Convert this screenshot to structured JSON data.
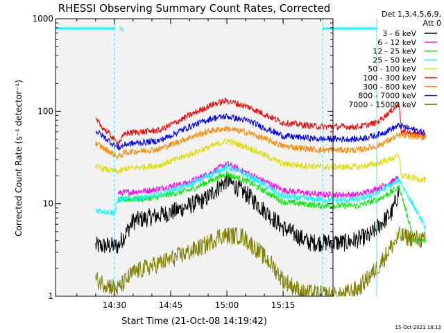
{
  "chart_data": {
    "type": "line",
    "title": "RHESSI Observing Summary Count Rates, Corrected",
    "xlabel": "Start Time (21-Oct-08 14:19:42)",
    "ylabel": "Corrected Count Rate (s⁻¹ detector⁻¹)",
    "y_scale": "log",
    "ylim": [
      1,
      1000
    ],
    "xlim_minutes": [
      14.3,
      88.3
    ],
    "y_ticks": [
      {
        "v": 1,
        "label": "1"
      },
      {
        "v": 10,
        "label": "10"
      },
      {
        "v": 100,
        "label": "100"
      },
      {
        "v": 1000,
        "label": "1000"
      }
    ],
    "x_ticks": [
      {
        "m": 30,
        "label": "14:30"
      },
      {
        "m": 45,
        "label": "14:45"
      },
      {
        "m": 60,
        "label": "15:00"
      },
      {
        "m": 75,
        "label": "15:15"
      },
      {
        "m": 90,
        "label": "15:30"
      },
      {
        "m": 105,
        "label": "15:45"
      }
    ],
    "legend": {
      "header": [
        "Det 1,3,4,5,6,9,",
        "Att 0"
      ],
      "placement": "right"
    },
    "series": [
      {
        "name": "3 - 6 keV",
        "color": "#000000",
        "points": [
          [
            25,
            3.5
          ],
          [
            31,
            3.5
          ],
          [
            35,
            6.5
          ],
          [
            45,
            8
          ],
          [
            54,
            11
          ],
          [
            60,
            18
          ],
          [
            66,
            12
          ],
          [
            75,
            5.5
          ],
          [
            82,
            3.8
          ],
          [
            92,
            3.8
          ],
          [
            98,
            4.5
          ],
          [
            104,
            8
          ],
          [
            106,
            14
          ]
        ]
      },
      {
        "name": "6 - 12 keV",
        "color": "#ff00ff",
        "points": [
          [
            31,
            13
          ],
          [
            40,
            14
          ],
          [
            50,
            17
          ],
          [
            56,
            22
          ],
          [
            60,
            27
          ],
          [
            66,
            21
          ],
          [
            75,
            14
          ],
          [
            85,
            12.5
          ],
          [
            95,
            12.5
          ],
          [
            100,
            14.5
          ],
          [
            106,
            19
          ]
        ]
      },
      {
        "name": "12 - 25 keV",
        "color": "#00ee00",
        "points": [
          [
            31,
            11
          ],
          [
            40,
            11.5
          ],
          [
            50,
            14
          ],
          [
            56,
            18
          ],
          [
            60,
            21
          ],
          [
            66,
            17
          ],
          [
            75,
            10.5
          ],
          [
            85,
            9.5
          ],
          [
            95,
            9.5
          ],
          [
            100,
            11
          ],
          [
            106,
            15
          ],
          [
            110,
            4
          ],
          [
            113,
            4
          ]
        ]
      },
      {
        "name": "25 - 50 keV",
        "color": "#00ffff",
        "points": [
          [
            25,
            8.5
          ],
          [
            30,
            8
          ],
          [
            31,
            11
          ],
          [
            40,
            12
          ],
          [
            50,
            16
          ],
          [
            56,
            21
          ],
          [
            60,
            25
          ],
          [
            66,
            20
          ],
          [
            75,
            12
          ],
          [
            85,
            11
          ],
          [
            95,
            11
          ],
          [
            100,
            13
          ],
          [
            106,
            18
          ],
          [
            113,
            5.5
          ]
        ]
      },
      {
        "name": "50 - 100 keV",
        "color": "#dddd00",
        "points": [
          [
            25,
            25
          ],
          [
            31,
            22
          ],
          [
            33,
            24
          ],
          [
            42,
            26
          ],
          [
            50,
            34
          ],
          [
            56,
            42
          ],
          [
            60,
            48
          ],
          [
            66,
            40
          ],
          [
            75,
            27
          ],
          [
            85,
            25
          ],
          [
            95,
            25
          ],
          [
            100,
            27
          ],
          [
            106,
            33
          ],
          [
            106.5,
            20
          ],
          [
            113,
            18
          ]
        ]
      },
      {
        "name": "100 - 300 keV",
        "color": "#ff0000",
        "points": [
          [
            25,
            80
          ],
          [
            31,
            45
          ],
          [
            33,
            58
          ],
          [
            42,
            62
          ],
          [
            50,
            90
          ],
          [
            56,
            118
          ],
          [
            60,
            130
          ],
          [
            66,
            110
          ],
          [
            75,
            75
          ],
          [
            85,
            68
          ],
          [
            95,
            68
          ],
          [
            100,
            75
          ],
          [
            106,
            120
          ],
          [
            106.5,
            60
          ],
          [
            113,
            55
          ]
        ]
      },
      {
        "name": "300 - 800 keV",
        "color": "#ff8800",
        "points": [
          [
            25,
            45
          ],
          [
            31,
            32
          ],
          [
            33,
            36
          ],
          [
            42,
            39
          ],
          [
            50,
            52
          ],
          [
            56,
            62
          ],
          [
            60,
            65
          ],
          [
            66,
            58
          ],
          [
            75,
            42
          ],
          [
            85,
            38
          ],
          [
            95,
            38
          ],
          [
            100,
            42
          ],
          [
            106,
            55
          ],
          [
            113,
            52
          ]
        ]
      },
      {
        "name": "800 - 7000 keV",
        "color": "#0000ff",
        "points": [
          [
            25,
            62
          ],
          [
            31,
            40
          ],
          [
            33,
            44
          ],
          [
            42,
            48
          ],
          [
            50,
            68
          ],
          [
            56,
            84
          ],
          [
            60,
            88
          ],
          [
            66,
            78
          ],
          [
            75,
            54
          ],
          [
            85,
            50
          ],
          [
            95,
            50
          ],
          [
            100,
            55
          ],
          [
            106,
            70
          ],
          [
            113,
            58
          ]
        ]
      },
      {
        "name": "7000 - 15000 keV",
        "color": "#808000",
        "points": [
          [
            25,
            1.5
          ],
          [
            31,
            1.2
          ],
          [
            35,
            1.8
          ],
          [
            45,
            2.5
          ],
          [
            54,
            3.5
          ],
          [
            58,
            4.5
          ],
          [
            64,
            4.5
          ],
          [
            68,
            3.2
          ],
          [
            72,
            2.2
          ],
          [
            75,
            1.5
          ],
          [
            80,
            1.1
          ],
          [
            90,
            1
          ],
          [
            95,
            1.2
          ],
          [
            100,
            2
          ],
          [
            104,
            3.5
          ],
          [
            106,
            4.5
          ],
          [
            113,
            4
          ]
        ]
      }
    ],
    "annotations": {
      "flag_label": "N",
      "night_marker_minutes": [
        30,
        100
      ]
    },
    "footer_timestamp": "15-Oct-2021 18:13"
  }
}
